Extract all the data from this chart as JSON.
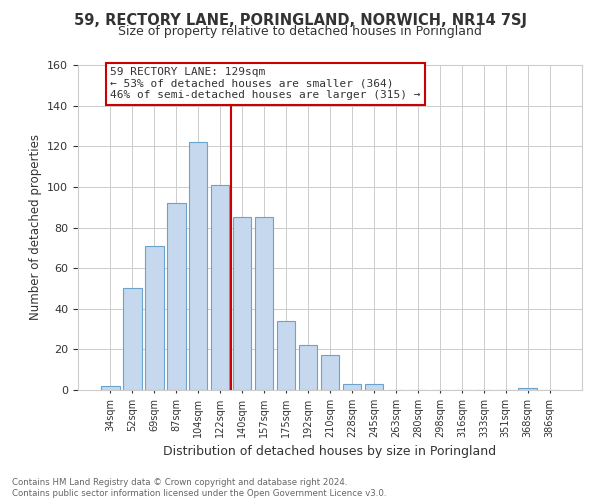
{
  "title": "59, RECTORY LANE, PORINGLAND, NORWICH, NR14 7SJ",
  "subtitle": "Size of property relative to detached houses in Poringland",
  "xlabel": "Distribution of detached houses by size in Poringland",
  "ylabel": "Number of detached properties",
  "bar_labels": [
    "34sqm",
    "52sqm",
    "69sqm",
    "87sqm",
    "104sqm",
    "122sqm",
    "140sqm",
    "157sqm",
    "175sqm",
    "192sqm",
    "210sqm",
    "228sqm",
    "245sqm",
    "263sqm",
    "280sqm",
    "298sqm",
    "316sqm",
    "333sqm",
    "351sqm",
    "368sqm",
    "386sqm"
  ],
  "bar_values": [
    2,
    50,
    71,
    92,
    122,
    101,
    85,
    85,
    34,
    22,
    17,
    3,
    3,
    0,
    0,
    0,
    0,
    0,
    0,
    1,
    0
  ],
  "bar_color": "#c5d8ed",
  "bar_edge_color": "#6aa3cc",
  "vline_x": 5.5,
  "vline_color": "#cc0000",
  "annotation_text": "59 RECTORY LANE: 129sqm\n← 53% of detached houses are smaller (364)\n46% of semi-detached houses are larger (315) →",
  "annotation_box_edge": "#cc0000",
  "ylim": [
    0,
    160
  ],
  "yticks": [
    0,
    20,
    40,
    60,
    80,
    100,
    120,
    140,
    160
  ],
  "footer_line1": "Contains HM Land Registry data © Crown copyright and database right 2024.",
  "footer_line2": "Contains public sector information licensed under the Open Government Licence v3.0.",
  "background_color": "#ffffff",
  "grid_color": "#cccccc"
}
